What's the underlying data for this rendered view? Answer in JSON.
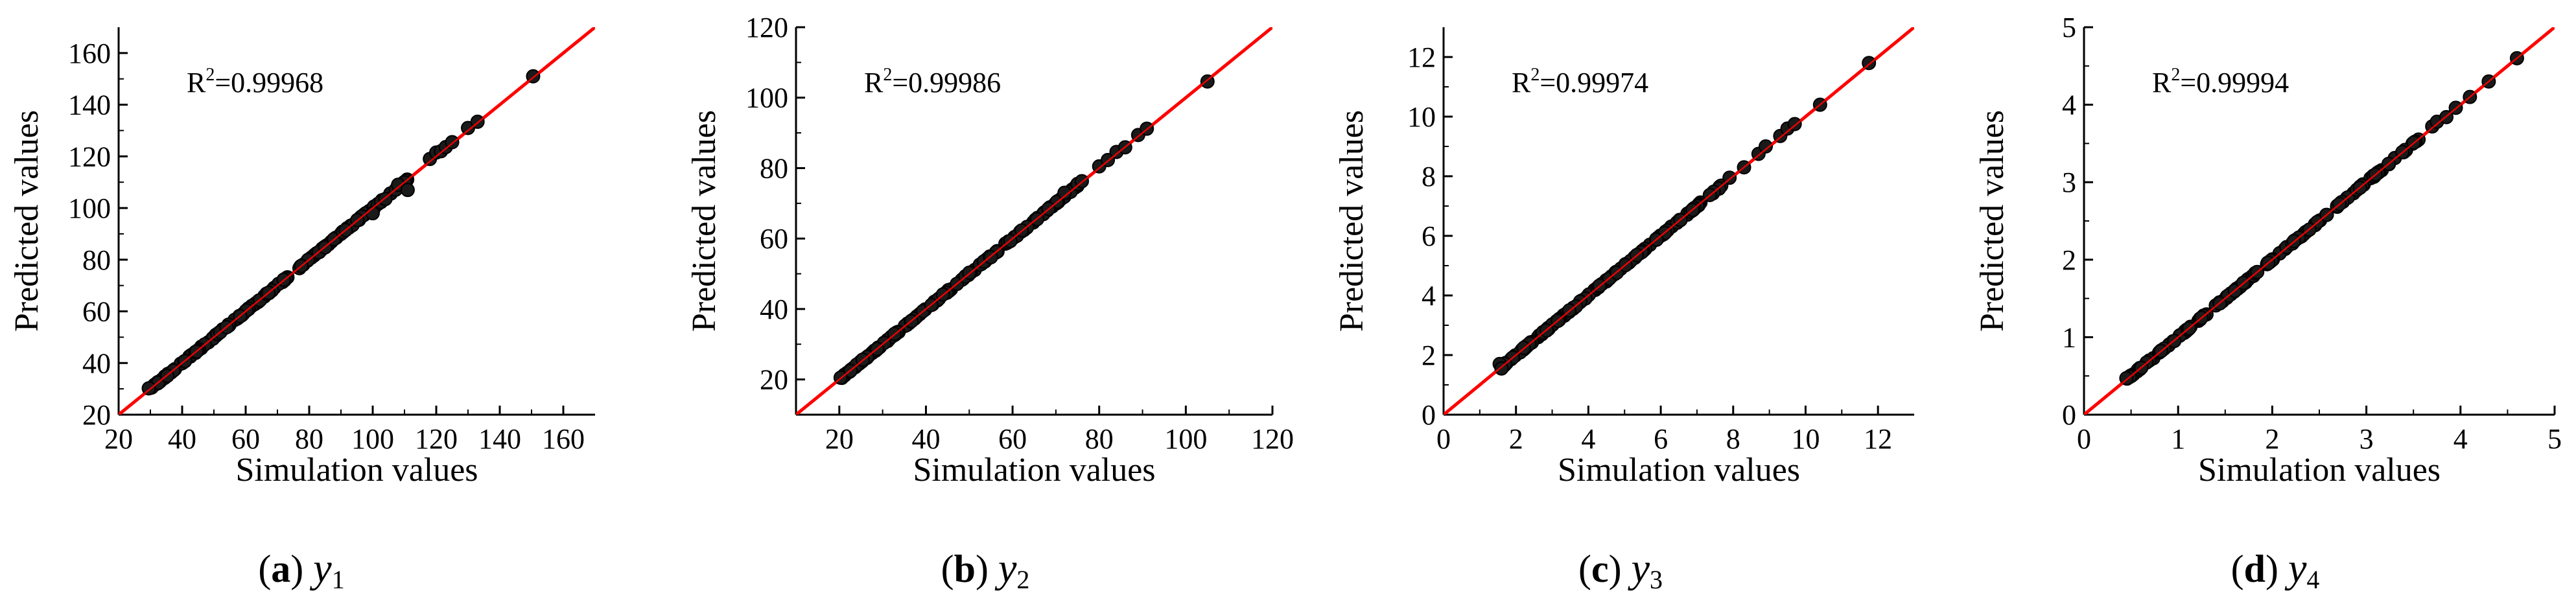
{
  "figure": {
    "panels": [
      {
        "letter": "a",
        "variable": "y",
        "subscript": "1"
      },
      {
        "letter": "b",
        "variable": "y",
        "subscript": "2"
      },
      {
        "letter": "c",
        "variable": "y",
        "subscript": "3"
      },
      {
        "letter": "d",
        "variable": "y",
        "subscript": "4"
      }
    ]
  },
  "colors": {
    "fit_line": "#ff0000",
    "points": "#1a1a1a",
    "point_edge": "#000000",
    "axis": "#000000"
  },
  "chart_data": [
    {
      "type": "scatter",
      "title": "",
      "xlabel": "Simulation values",
      "ylabel": "Predicted values",
      "xlim": [
        20,
        170
      ],
      "ylim": [
        20,
        170
      ],
      "xticks": [
        20,
        40,
        60,
        80,
        100,
        120,
        140,
        160
      ],
      "yticks": [
        20,
        40,
        60,
        80,
        100,
        120,
        140,
        160
      ],
      "r2_base": "R",
      "r2_exp": "2",
      "r2_value": "=0.99968",
      "fit_line": [
        [
          20,
          20
        ],
        [
          170,
          170
        ]
      ],
      "range": [
        30,
        111
      ],
      "count": 150,
      "extra_points": [
        [
          29.5,
          30.2
        ],
        [
          100,
          98
        ],
        [
          104,
          103.5
        ],
        [
          108,
          109
        ],
        [
          111,
          107
        ],
        [
          118,
          119
        ],
        [
          120,
          121.5
        ],
        [
          121.5,
          122
        ],
        [
          123,
          123.6
        ],
        [
          125,
          125.5
        ],
        [
          130,
          131
        ],
        [
          133,
          133.4
        ],
        [
          150.5,
          151
        ]
      ]
    },
    {
      "type": "scatter",
      "title": "",
      "xlabel": "Simulation values",
      "ylabel": "Predicted values",
      "xlim": [
        10,
        120
      ],
      "ylim": [
        10,
        120
      ],
      "xticks": [
        20,
        40,
        60,
        80,
        100,
        120
      ],
      "yticks": [
        20,
        40,
        60,
        80,
        100,
        120
      ],
      "r2_base": "R",
      "r2_exp": "2",
      "r2_value": "=0.99986",
      "fit_line": [
        [
          10,
          10
        ],
        [
          120,
          120
        ]
      ],
      "range": [
        20.5,
        75
      ],
      "count": 150,
      "extra_points": [
        [
          20.3,
          20.5
        ],
        [
          50,
          50.3
        ],
        [
          55,
          54.7
        ],
        [
          72,
          73
        ],
        [
          75,
          75.5
        ],
        [
          76,
          76.3
        ],
        [
          80,
          80.5
        ],
        [
          82,
          82.3
        ],
        [
          84,
          84.6
        ],
        [
          86,
          85.9
        ],
        [
          89,
          89.4
        ],
        [
          91,
          91.2
        ],
        [
          105,
          104.6
        ]
      ]
    },
    {
      "type": "scatter",
      "title": "",
      "xlabel": "Simulation values",
      "ylabel": "Predicted values",
      "xlim": [
        0,
        13
      ],
      "ylim": [
        0,
        13
      ],
      "xticks": [
        0,
        2,
        4,
        6,
        8,
        10,
        12
      ],
      "yticks": [
        0,
        2,
        4,
        6,
        8,
        10,
        12
      ],
      "r2_base": "R",
      "r2_exp": "2",
      "r2_value": "=0.99974",
      "fit_line": [
        [
          0,
          0
        ],
        [
          13,
          13
        ]
      ],
      "range": [
        1.6,
        7.8
      ],
      "count": 150,
      "extra_points": [
        [
          1.55,
          1.7
        ],
        [
          1.6,
          1.55
        ],
        [
          7.9,
          7.95
        ],
        [
          8.3,
          8.3
        ],
        [
          8.7,
          8.75
        ],
        [
          8.9,
          9.0
        ],
        [
          9.3,
          9.35
        ],
        [
          9.5,
          9.6
        ],
        [
          9.7,
          9.75
        ],
        [
          10.4,
          10.4
        ],
        [
          11.75,
          11.8
        ]
      ]
    },
    {
      "type": "scatter",
      "title": "",
      "xlabel": "Simulation values",
      "ylabel": "Predicted values",
      "xlim": [
        0,
        5
      ],
      "ylim": [
        0,
        5
      ],
      "xticks": [
        0,
        1,
        2,
        3,
        4,
        5
      ],
      "yticks": [
        0,
        1,
        2,
        3,
        4,
        5
      ],
      "r2_base": "R",
      "r2_exp": "2",
      "r2_value": "=0.99994",
      "fit_line": [
        [
          0,
          0
        ],
        [
          5,
          5
        ]
      ],
      "range": [
        0.45,
        3.6
      ],
      "count": 150,
      "extra_points": [
        [
          0.45,
          0.47
        ],
        [
          3.7,
          3.72
        ],
        [
          3.75,
          3.78
        ],
        [
          3.85,
          3.84
        ],
        [
          3.95,
          3.96
        ],
        [
          4.1,
          4.1
        ],
        [
          4.3,
          4.3
        ],
        [
          4.6,
          4.6
        ]
      ]
    }
  ]
}
